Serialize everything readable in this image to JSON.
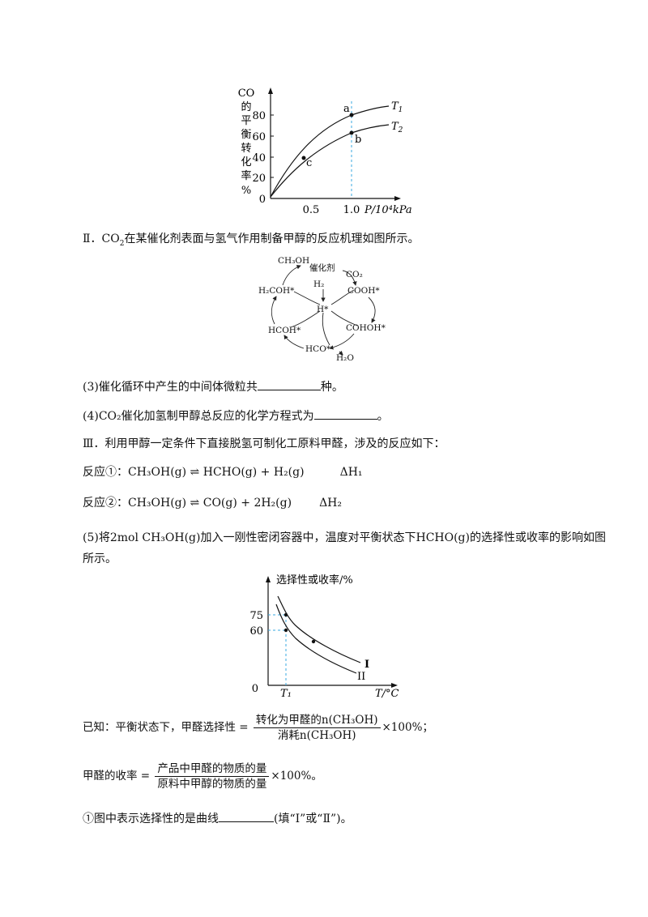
{
  "fig1": {
    "ylabel_chars": [
      "CO",
      "的",
      "平",
      "衡",
      "转",
      "化",
      "率",
      "%"
    ],
    "yticks": [
      "0",
      "20",
      "40",
      "60",
      "80"
    ],
    "xticks": [
      "0.5",
      "1.0"
    ],
    "xlabel": "P/10⁴kPa",
    "curve_T1": "T",
    "curve_T1_sub": "1",
    "curve_T2": "T",
    "curve_T2_sub": "2",
    "point_a": "a",
    "point_b": "b",
    "point_c": "c"
  },
  "chart_data": [
    {
      "type": "line",
      "xlabel": "P/10⁴kPa",
      "ylabel": "CO的平衡转化率%",
      "ylim": [
        0,
        90
      ],
      "xticks": [
        0.5,
        1.0
      ],
      "series": [
        {
          "name": "T1",
          "points": [
            [
              0,
              0
            ],
            [
              0.5,
              52
            ],
            [
              1.0,
              80
            ],
            [
              1.5,
              88
            ]
          ]
        },
        {
          "name": "T2",
          "points": [
            [
              0,
              0
            ],
            [
              0.5,
              40
            ],
            [
              1.0,
              64
            ],
            [
              1.5,
              71
            ]
          ]
        }
      ],
      "annotations": [
        {
          "label": "a",
          "x": 1.0,
          "y": 80
        },
        {
          "label": "b",
          "x": 1.0,
          "y": 64
        },
        {
          "label": "c",
          "x": 0.4,
          "y": 40
        }
      ]
    },
    {
      "type": "line",
      "xlabel": "T/°C",
      "ylabel": "选择性或收率/%",
      "yticks": [
        60,
        75
      ],
      "xticks": [
        "T1"
      ],
      "series": [
        {
          "name": "I",
          "points": [
            [
              "T1",
              75
            ]
          ]
        },
        {
          "name": "II",
          "points": [
            [
              "T1",
              60
            ]
          ]
        }
      ]
    }
  ],
  "section2": {
    "roman": "Ⅱ．",
    "co2": "CO",
    "co2_sub": "2",
    "text": "在某催化剂表面与氢气作用制备甲醇的反应机理如图所示。"
  },
  "cycle": {
    "ch3oh": "CH₃OH",
    "catalyst": "催化剂",
    "co2": "CO₂",
    "h2": "H₂",
    "cooh": "COOH*",
    "h2coh": "H₂COH*",
    "hstar": "H*",
    "hcoh": "HCOH*",
    "cohoh": "COHOH*",
    "hco": "HCO*",
    "h2o": "H₂O"
  },
  "q3": {
    "before": "(3)催化循环中产生的中间体微粒共",
    "after": "种。"
  },
  "q4": {
    "before": "(4)",
    "co2": "CO₂",
    "mid": "催化加氢制甲醇总反应的化学方程式为",
    "after": "。"
  },
  "section3": {
    "text": "Ⅲ．利用甲醇一定条件下直接脱氢可制化工原料甲醛，涉及的反应如下："
  },
  "r1": {
    "label": "反应①：",
    "eq": "CH₃OH(g) ⇌ HCHO(g) + H₂(g)",
    "dh": "ΔH₁"
  },
  "r2": {
    "label": "反应②：",
    "eq": "CH₃OH(g) ⇌ CO(g) + 2H₂(g)",
    "dh": "ΔH₂"
  },
  "q5": {
    "line1_a": "(5)将2mol",
    "line1_b": "CH₃OH(g)",
    "line1_c": "加入一刚性密闭容器中，温度对平衡状态下",
    "line1_d": "HCHO(g)",
    "line1_e": "的选择性或收率的影响如图",
    "line2": "所示。"
  },
  "fig2": {
    "ylabel": "选择性或收率/%",
    "y75": "75",
    "y60": "60",
    "origin": "0",
    "xtick": "T₁",
    "xlabel": "T/°C",
    "curve1": "I",
    "curve2": "II"
  },
  "known": {
    "prefix": "已知：平衡状态下，",
    "sel_label": "甲醛选择性 =",
    "sel_num": "转化为甲醛的n(CH₃OH)",
    "sel_den": "消耗n(CH₃OH)",
    "sel_suffix": "×100%；",
    "yield_label": "甲醛的收率 =",
    "yield_num": "产品中甲醛的物质的量",
    "yield_den": "原料中甲醇的物质的量",
    "yield_suffix": "×100%。"
  },
  "q5_1": {
    "before": "①图中表示选择性的是曲线",
    "after": "(填“Ⅰ”或“Ⅱ”)。"
  }
}
